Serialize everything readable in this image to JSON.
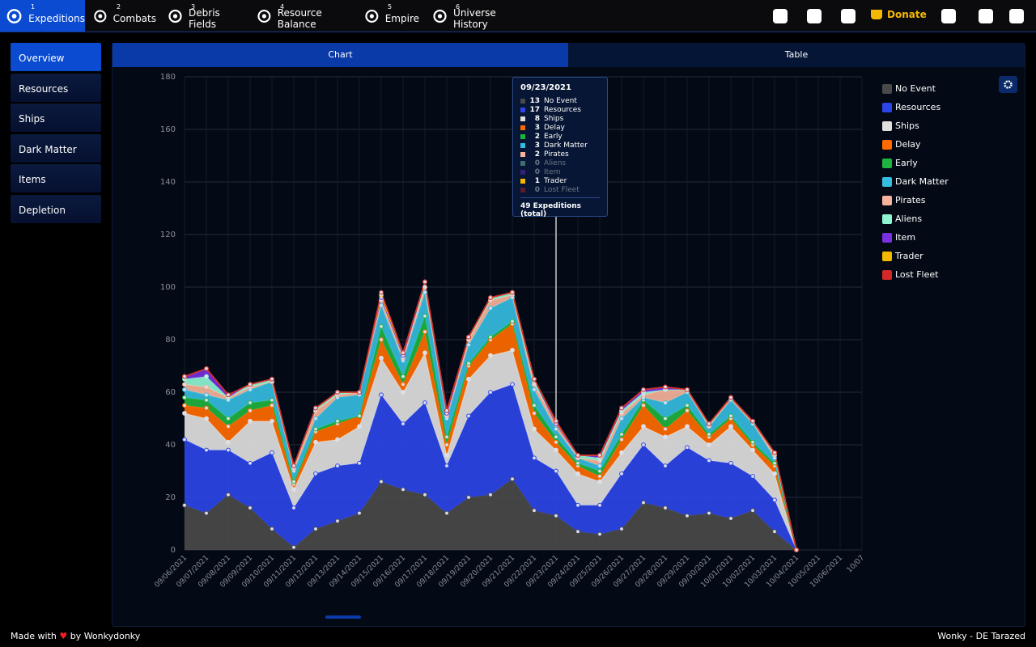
{
  "nav": {
    "items": [
      {
        "num": "1",
        "label": "Expeditions"
      },
      {
        "num": "2",
        "label": "Combats"
      },
      {
        "num": "3",
        "label": "Debris Fields"
      },
      {
        "num": "4",
        "label": "Resource Balance"
      },
      {
        "num": "5",
        "label": "Empire"
      },
      {
        "num": "6",
        "label": "Universe History"
      }
    ],
    "donate": "Donate"
  },
  "sidebar": [
    "Overview",
    "Resources",
    "Ships",
    "Dark Matter",
    "Items",
    "Depletion"
  ],
  "tabs": [
    "Chart",
    "Table"
  ],
  "tooltip": {
    "date": "09/23/2021",
    "total": 49,
    "total_label": "Expeditions (total)"
  },
  "footer": {
    "left_before": "Made with",
    "left_after": "by Wonkydonky",
    "right": "Wonky - DE Tarazed"
  },
  "chart_data": {
    "type": "stacked_area",
    "grid": true,
    "legend": "right",
    "ylim": [
      0,
      180
    ],
    "yticks": [
      0,
      20,
      40,
      60,
      80,
      100,
      120,
      140,
      160,
      180
    ],
    "categories": [
      "09/06/2021",
      "09/07/2021",
      "09/08/2021",
      "09/09/2021",
      "09/10/2021",
      "09/11/2021",
      "09/12/2021",
      "09/13/2021",
      "09/14/2021",
      "09/15/2021",
      "09/16/2021",
      "09/17/2021",
      "09/18/2021",
      "09/19/2021",
      "09/20/2021",
      "09/21/2021",
      "09/22/2021",
      "09/23/2021",
      "09/24/2021",
      "09/25/2021",
      "09/26/2021",
      "09/27/2021",
      "09/28/2021",
      "09/29/2021",
      "09/30/2021",
      "10/01/2021",
      "10/02/2021",
      "10/03/2021",
      "10/04/2021",
      "10/05/2021",
      "10/06/2021",
      "10/07"
    ],
    "series": [
      {
        "name": "No Event",
        "color": "#4a4a4a",
        "values": [
          17,
          14,
          21,
          16,
          8,
          1,
          8,
          11,
          14,
          26,
          23,
          21,
          14,
          20,
          21,
          27,
          15,
          13,
          7,
          6,
          8,
          18,
          16,
          13,
          14,
          12,
          15,
          7,
          0,
          null,
          null,
          null
        ]
      },
      {
        "name": "Resources",
        "color": "#2b45e6",
        "values": [
          25,
          24,
          17,
          17,
          29,
          15,
          21,
          21,
          19,
          33,
          25,
          35,
          18,
          31,
          39,
          36,
          20,
          17,
          10,
          11,
          21,
          22,
          16,
          26,
          20,
          21,
          13,
          12,
          0,
          null,
          null,
          null
        ]
      },
      {
        "name": "Ships",
        "color": "#e0e0e0",
        "values": [
          10,
          12,
          3,
          16,
          12,
          7,
          12,
          10,
          14,
          14,
          12,
          19,
          4,
          14,
          14,
          13,
          11,
          8,
          12,
          9,
          8,
          7,
          11,
          8,
          6,
          14,
          10,
          10,
          0,
          null,
          null,
          null
        ]
      },
      {
        "name": "Delay",
        "color": "#ff6a00",
        "values": [
          3,
          4,
          6,
          4,
          6,
          2,
          4,
          6,
          4,
          7,
          3,
          8,
          4,
          5,
          6,
          10,
          6,
          3,
          3,
          2,
          5,
          8,
          3,
          6,
          3,
          3,
          2,
          3,
          0,
          null,
          null,
          null
        ]
      },
      {
        "name": "Early",
        "color": "#1fb340",
        "values": [
          3,
          3,
          3,
          3,
          2,
          1,
          1,
          1,
          0,
          5,
          3,
          6,
          3,
          1,
          1,
          1,
          3,
          2,
          1,
          2,
          2,
          2,
          4,
          2,
          1,
          1,
          1,
          1,
          0,
          null,
          null,
          null
        ]
      },
      {
        "name": "Dark Matter",
        "color": "#35bde0",
        "values": [
          3,
          2,
          7,
          5,
          7,
          4,
          4,
          9,
          8,
          8,
          6,
          9,
          7,
          7,
          11,
          9,
          6,
          3,
          2,
          2,
          6,
          1,
          6,
          5,
          3,
          6,
          7,
          2,
          0,
          null,
          null,
          null
        ]
      },
      {
        "name": "Pirates",
        "color": "#f7b39a",
        "values": [
          2,
          3,
          1,
          1,
          0,
          1,
          3,
          1,
          1,
          2,
          1,
          2,
          1,
          2,
          3,
          1,
          2,
          2,
          0,
          2,
          2,
          1,
          5,
          1,
          0,
          1,
          1,
          1,
          0,
          null,
          null,
          null
        ]
      },
      {
        "name": "Aliens",
        "color": "#8df5d0",
        "values": [
          2,
          4,
          0,
          1,
          1,
          1,
          1,
          1,
          0,
          1,
          1,
          2,
          1,
          1,
          1,
          1,
          2,
          0,
          1,
          1,
          1,
          1,
          0,
          0,
          1,
          0,
          0,
          1,
          0,
          null,
          null,
          null
        ]
      },
      {
        "name": "Item",
        "color": "#7a2fe0",
        "values": [
          1,
          3,
          1,
          0,
          0,
          0,
          0,
          0,
          0,
          0,
          0,
          0,
          0,
          0,
          0,
          0,
          0,
          0,
          0,
          1,
          1,
          1,
          1,
          0,
          0,
          0,
          0,
          0,
          0,
          null,
          null,
          null
        ]
      },
      {
        "name": "Trader",
        "color": "#f5b800",
        "values": [
          0,
          0,
          0,
          0,
          0,
          0,
          0,
          0,
          0,
          1,
          1,
          0,
          1,
          0,
          0,
          0,
          0,
          1,
          0,
          0,
          0,
          0,
          0,
          0,
          0,
          0,
          0,
          0,
          0,
          null,
          null,
          null
        ]
      },
      {
        "name": "Lost Fleet",
        "color": "#d42828",
        "values": [
          0,
          0,
          0,
          0,
          0,
          0,
          0,
          0,
          0,
          1,
          0,
          0,
          0,
          0,
          0,
          0,
          0,
          0,
          0,
          0,
          0,
          0,
          0,
          0,
          0,
          0,
          0,
          0,
          0,
          null,
          null,
          null
        ]
      }
    ]
  }
}
